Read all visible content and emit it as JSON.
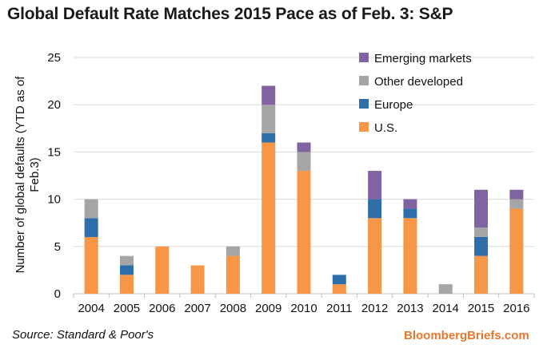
{
  "title": "Global Default Rate Matches 2015 Pace as of Feb. 3: S&P",
  "source": "Source: Standard & Poor's",
  "brand": "BloombergBriefs.com",
  "chart_data": {
    "type": "bar",
    "stacked": true,
    "ylabel": "Number of global defaults (YTD as of Feb.3)",
    "ylim": [
      0,
      25
    ],
    "yticks": [
      0,
      5,
      10,
      15,
      20,
      25
    ],
    "grid": true,
    "legend_position": "top-right",
    "categories": [
      "2004",
      "2005",
      "2006",
      "2007",
      "2008",
      "2009",
      "2010",
      "2011",
      "2012",
      "2013",
      "2014",
      "2015",
      "2016"
    ],
    "series": [
      {
        "name": "U.S.",
        "color": "#f79646",
        "values": [
          6,
          2,
          5,
          3,
          4,
          16,
          13,
          1,
          8,
          8,
          0,
          4,
          9
        ]
      },
      {
        "name": "Europe",
        "color": "#2e6faa",
        "values": [
          2,
          1,
          0,
          0,
          0,
          1,
          0,
          1,
          2,
          1,
          0,
          2,
          0
        ]
      },
      {
        "name": "Other developed",
        "color": "#a5a5a5",
        "values": [
          2,
          1,
          0,
          0,
          1,
          3,
          2,
          0,
          0,
          0,
          1,
          1,
          1
        ]
      },
      {
        "name": "Emerging markets",
        "color": "#8064a2",
        "values": [
          0,
          0,
          0,
          0,
          0,
          2,
          1,
          0,
          3,
          1,
          0,
          4,
          1
        ]
      }
    ],
    "legend_order": [
      "Emerging markets",
      "Other developed",
      "Europe",
      "U.S."
    ]
  }
}
